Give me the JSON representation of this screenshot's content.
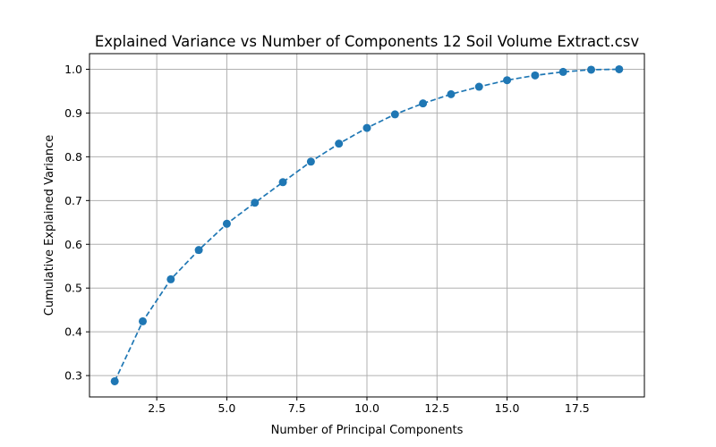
{
  "chart_data": {
    "type": "line",
    "title": "Explained Variance vs Number of Components 12 Soil Volume Extract.csv",
    "xlabel": "Number of Principal Components",
    "ylabel": "Cumulative Explained Variance",
    "xlim": [
      0.1,
      19.9
    ],
    "ylim": [
      0.2512,
      1.0357
    ],
    "xticks": [
      2.5,
      5.0,
      7.5,
      10.0,
      12.5,
      15.0,
      17.5
    ],
    "xtick_labels": [
      "2.5",
      "5.0",
      "7.5",
      "10.0",
      "12.5",
      "15.0",
      "17.5"
    ],
    "yticks": [
      0.3,
      0.4,
      0.5,
      0.6,
      0.7,
      0.8,
      0.9,
      1.0
    ],
    "ytick_labels": [
      "0.3",
      "0.4",
      "0.5",
      "0.6",
      "0.7",
      "0.8",
      "0.9",
      "1.0"
    ],
    "grid": true,
    "line_style": "dashed",
    "marker": "circle",
    "color": "#1f77b4",
    "series": [
      {
        "x": [
          1,
          2,
          3,
          4,
          5,
          6,
          7,
          8,
          9,
          10,
          11,
          12,
          13,
          14,
          15,
          16,
          17,
          18,
          19
        ],
        "values": [
          0.287,
          0.424,
          0.52,
          0.587,
          0.647,
          0.695,
          0.742,
          0.789,
          0.83,
          0.866,
          0.897,
          0.922,
          0.943,
          0.96,
          0.975,
          0.986,
          0.994,
          0.999,
          1.0
        ]
      }
    ]
  }
}
